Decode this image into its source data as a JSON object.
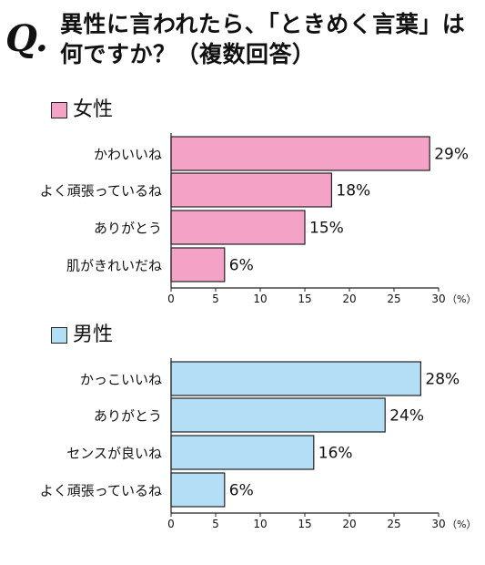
{
  "header": {
    "title_line1": "異性に言われたら、「ときめく言葉」は",
    "title_line2": "何ですか？（複数回答）",
    "q_label": "Q."
  },
  "chart_data": [
    {
      "type": "bar",
      "orientation": "horizontal",
      "legend": "女性",
      "color": "#f4a3c6",
      "categories": [
        "かわいいね",
        "よく頑張っているね",
        "ありがとう",
        "肌がきれいだね"
      ],
      "values": [
        29,
        18,
        15,
        6
      ],
      "value_labels": [
        "29%",
        "18%",
        "15%",
        "6%"
      ],
      "xlim": [
        0,
        30
      ],
      "xticks": [
        "0",
        "5",
        "10",
        "15",
        "20",
        "25",
        "30"
      ],
      "unit": "（%）"
    },
    {
      "type": "bar",
      "orientation": "horizontal",
      "legend": "男性",
      "color": "#b4def6",
      "categories": [
        "かっこいいね",
        "ありがとう",
        "センスが良いね",
        "よく頑張っているね"
      ],
      "values": [
        28,
        24,
        16,
        6
      ],
      "value_labels": [
        "28%",
        "24%",
        "16%",
        "6%"
      ],
      "xlim": [
        0,
        30
      ],
      "xticks": [
        "0",
        "5",
        "10",
        "15",
        "20",
        "25",
        "30"
      ],
      "unit": "（%）"
    }
  ]
}
